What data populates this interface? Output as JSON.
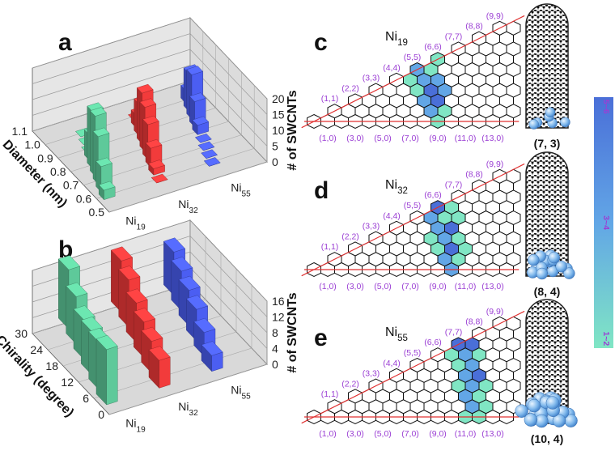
{
  "chart_data": [
    {
      "type": "bar3d",
      "panel": "a",
      "categories": [
        "Ni19",
        "Ni32",
        "Ni55"
      ],
      "ylabel": "Diameter (nm)",
      "zlabel": "# of SWCNTs",
      "ylim": [
        0.5,
        1.1
      ],
      "yticks": [
        0.5,
        0.6,
        0.7,
        0.8,
        0.9,
        {
          "value": 1,
          "label": "1.0"
        },
        1.1
      ],
      "zlim": [
        0,
        20
      ],
      "zticks": [
        0,
        5,
        10,
        15,
        20
      ],
      "x": [
        0.6,
        0.65,
        0.7,
        0.75,
        0.8,
        0.85,
        0.9,
        0.95,
        1.0
      ],
      "series": [
        {
          "name": "Ni19",
          "color": "#5ec99a",
          "values": [
            3,
            8,
            15,
            19,
            18,
            8,
            0,
            0,
            0
          ]
        },
        {
          "name": "Ni32",
          "color": "#f23b3b",
          "values": [
            0,
            2,
            6,
            11,
            14,
            16,
            10,
            4,
            0
          ]
        },
        {
          "name": "Ni55",
          "color": "#4b5ef2",
          "values": [
            0,
            0,
            0,
            0,
            3,
            8,
            14,
            12,
            4
          ]
        }
      ]
    },
    {
      "type": "bar3d",
      "panel": "b",
      "categories": [
        "Ni19",
        "Ni32",
        "Ni55"
      ],
      "ylabel": "Chirality (degree)",
      "zlabel": "# of SWCNTs",
      "ylim": [
        0,
        30
      ],
      "yticks": [
        0,
        6,
        12,
        18,
        24,
        30
      ],
      "zlim": [
        0,
        16
      ],
      "zticks": [
        0,
        4,
        8,
        12,
        16
      ],
      "x": [
        5,
        10,
        15,
        20,
        25,
        30
      ],
      "series": [
        {
          "name": "Ni19",
          "color": "#5ec99a",
          "values": [
            14,
            12,
            11,
            10,
            12,
            15
          ]
        },
        {
          "name": "Ni32",
          "color": "#f23b3b",
          "values": [
            7,
            8,
            9,
            10,
            12,
            13
          ]
        },
        {
          "name": "Ni55",
          "color": "#4b5ef2",
          "values": [
            4,
            6,
            8,
            9,
            10,
            11
          ]
        }
      ]
    }
  ],
  "colorbar": {
    "labels": [
      "1~2",
      "3~4",
      "5~6"
    ],
    "colors": [
      "#80e6c4",
      "#62a6e6",
      "#4a6fd8"
    ]
  },
  "maps": [
    {
      "panel": "c",
      "cluster": "Ni19",
      "tube": "(7, 3)",
      "top_labels": [
        "(1,1)",
        "(2,2)",
        "(3,3)",
        "(4,4)",
        "(5,5)",
        "(6,6)",
        "(7,7)",
        "(8,8)",
        "(9,9)"
      ],
      "bottom_labels": [
        "(1,0)",
        "(3,0)",
        "(5,0)",
        "(7,0)",
        "(9,0)",
        "(11,0)",
        "(13,0)"
      ],
      "cells": [
        [
          9,
          0,
          1
        ],
        [
          8,
          1,
          2
        ],
        [
          9,
          1,
          1
        ],
        [
          7,
          2,
          2
        ],
        [
          8,
          2,
          3
        ],
        [
          7,
          3,
          3
        ],
        [
          8,
          3,
          2
        ],
        [
          6,
          3,
          1
        ],
        [
          6,
          4,
          2
        ],
        [
          7,
          4,
          2
        ],
        [
          5,
          4,
          1
        ],
        [
          5,
          5,
          2
        ],
        [
          6,
          5,
          1
        ],
        [
          6,
          6,
          1
        ]
      ]
    },
    {
      "panel": "d",
      "cluster": "Ni32",
      "tube": "(8, 4)",
      "top_labels": [
        "(1,1)",
        "(2,2)",
        "(3,3)",
        "(4,4)",
        "(5,5)",
        "(6,6)",
        "(7,7)",
        "(8,8)",
        "(9,9)"
      ],
      "bottom_labels": [
        "(1,0)",
        "(3,0)",
        "(5,0)",
        "(7,0)",
        "(9,0)",
        "(11,0)",
        "(13,0)"
      ],
      "cells": [
        [
          10,
          0,
          2
        ],
        [
          10,
          1,
          1
        ],
        [
          9,
          1,
          2
        ],
        [
          9,
          2,
          3
        ],
        [
          8,
          2,
          1
        ],
        [
          10,
          2,
          1
        ],
        [
          8,
          3,
          2
        ],
        [
          9,
          3,
          1
        ],
        [
          7,
          3,
          1
        ],
        [
          8,
          4,
          3
        ],
        [
          7,
          4,
          2
        ],
        [
          7,
          5,
          1
        ],
        [
          6,
          5,
          2
        ],
        [
          7,
          6,
          1
        ],
        [
          6,
          6,
          3
        ],
        [
          8,
          5,
          1
        ]
      ]
    },
    {
      "panel": "e",
      "cluster": "Ni55",
      "tube": "(10, 4)",
      "top_labels": [
        "(1,1)",
        "(2,2)",
        "(3,3)",
        "(4,4)",
        "(5,5)",
        "(6,6)",
        "(7,7)",
        "(8,8)",
        "(9,9)"
      ],
      "bottom_labels": [
        "(1,0)",
        "(3,0)",
        "(5,0)",
        "(7,0)",
        "(9,0)",
        "(11,0)",
        "(13,0)"
      ],
      "cells": [
        [
          11,
          0,
          1
        ],
        [
          12,
          0,
          1
        ],
        [
          11,
          1,
          2
        ],
        [
          12,
          1,
          1
        ],
        [
          10,
          2,
          2
        ],
        [
          11,
          2,
          1
        ],
        [
          10,
          3,
          2
        ],
        [
          9,
          3,
          1
        ],
        [
          10,
          4,
          3
        ],
        [
          9,
          4,
          2
        ],
        [
          11,
          3,
          1
        ],
        [
          8,
          5,
          1
        ],
        [
          9,
          5,
          2
        ],
        [
          8,
          6,
          2
        ],
        [
          7,
          7,
          3
        ],
        [
          8,
          7,
          3
        ],
        [
          9,
          6,
          1
        ],
        [
          7,
          6,
          1
        ]
      ]
    }
  ]
}
